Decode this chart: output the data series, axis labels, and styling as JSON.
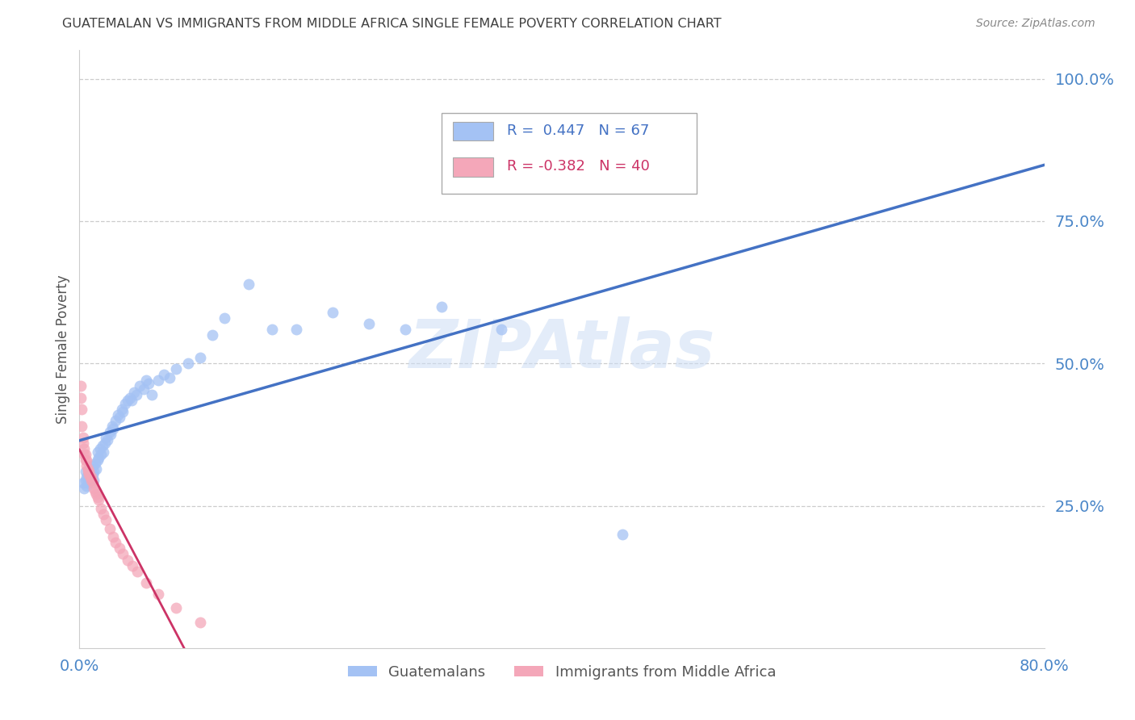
{
  "title": "GUATEMALAN VS IMMIGRANTS FROM MIDDLE AFRICA SINGLE FEMALE POVERTY CORRELATION CHART",
  "source": "Source: ZipAtlas.com",
  "ylabel": "Single Female Poverty",
  "xlim": [
    0.0,
    0.8
  ],
  "ylim": [
    0.0,
    1.05
  ],
  "ytick_positions": [
    0.25,
    0.5,
    0.75,
    1.0
  ],
  "ytick_labels": [
    "25.0%",
    "50.0%",
    "75.0%",
    "100.0%"
  ],
  "watermark": "ZIPAtlas",
  "blue_R": 0.447,
  "blue_N": 67,
  "pink_R": -0.382,
  "pink_N": 40,
  "blue_color": "#a4c2f4",
  "pink_color": "#f4a7b9",
  "line_blue": "#4472c4",
  "line_pink": "#cc3366",
  "legend_box_blue": "#a4c2f4",
  "legend_box_pink": "#f4a7b9",
  "title_color": "#404040",
  "axis_label_color": "#555555",
  "tick_label_color": "#4a86c8",
  "grid_color": "#cccccc",
  "blue_points_x": [
    0.003,
    0.004,
    0.005,
    0.005,
    0.006,
    0.006,
    0.007,
    0.007,
    0.008,
    0.008,
    0.009,
    0.009,
    0.01,
    0.01,
    0.011,
    0.011,
    0.012,
    0.012,
    0.013,
    0.014,
    0.015,
    0.015,
    0.016,
    0.017,
    0.018,
    0.019,
    0.02,
    0.021,
    0.022,
    0.023,
    0.025,
    0.026,
    0.027,
    0.028,
    0.03,
    0.032,
    0.033,
    0.035,
    0.036,
    0.038,
    0.04,
    0.042,
    0.043,
    0.045,
    0.047,
    0.05,
    0.053,
    0.055,
    0.057,
    0.06,
    0.065,
    0.07,
    0.075,
    0.08,
    0.09,
    0.1,
    0.11,
    0.12,
    0.14,
    0.16,
    0.18,
    0.21,
    0.24,
    0.27,
    0.3,
    0.35,
    0.45
  ],
  "blue_points_y": [
    0.29,
    0.28,
    0.295,
    0.31,
    0.285,
    0.3,
    0.29,
    0.305,
    0.295,
    0.31,
    0.3,
    0.315,
    0.295,
    0.31,
    0.305,
    0.32,
    0.295,
    0.31,
    0.325,
    0.315,
    0.33,
    0.345,
    0.335,
    0.35,
    0.34,
    0.355,
    0.345,
    0.36,
    0.37,
    0.365,
    0.38,
    0.375,
    0.39,
    0.385,
    0.4,
    0.41,
    0.405,
    0.42,
    0.415,
    0.43,
    0.435,
    0.44,
    0.435,
    0.45,
    0.445,
    0.46,
    0.455,
    0.47,
    0.465,
    0.445,
    0.47,
    0.48,
    0.475,
    0.49,
    0.5,
    0.51,
    0.55,
    0.58,
    0.64,
    0.56,
    0.56,
    0.59,
    0.57,
    0.56,
    0.6,
    0.56,
    0.2
  ],
  "pink_points_x": [
    0.001,
    0.001,
    0.002,
    0.002,
    0.003,
    0.003,
    0.004,
    0.004,
    0.005,
    0.005,
    0.006,
    0.006,
    0.007,
    0.007,
    0.008,
    0.008,
    0.009,
    0.01,
    0.01,
    0.011,
    0.012,
    0.013,
    0.014,
    0.015,
    0.016,
    0.018,
    0.02,
    0.022,
    0.025,
    0.028,
    0.03,
    0.033,
    0.036,
    0.04,
    0.044,
    0.048,
    0.055,
    0.065,
    0.08,
    0.1
  ],
  "pink_points_y": [
    0.46,
    0.44,
    0.42,
    0.39,
    0.37,
    0.36,
    0.35,
    0.34,
    0.34,
    0.33,
    0.33,
    0.32,
    0.315,
    0.31,
    0.31,
    0.305,
    0.3,
    0.3,
    0.295,
    0.29,
    0.28,
    0.275,
    0.27,
    0.265,
    0.26,
    0.245,
    0.235,
    0.225,
    0.21,
    0.195,
    0.185,
    0.175,
    0.165,
    0.155,
    0.145,
    0.135,
    0.115,
    0.095,
    0.07,
    0.045
  ],
  "figsize": [
    14.06,
    8.92
  ],
  "dpi": 100
}
